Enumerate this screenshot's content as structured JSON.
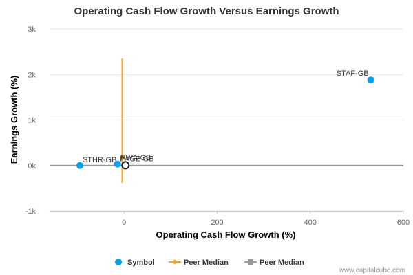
{
  "chart_data": {
    "type": "scatter",
    "title": "Operating Cash Flow Growth Versus Earnings Growth",
    "xlabel": "Operating Cash Flow Growth (%)",
    "ylabel": "Earnings Growth (%)",
    "xlim": [
      -160,
      600
    ],
    "ylim": [
      -1000,
      3000
    ],
    "x_ticks": [
      {
        "value": 0,
        "label": "0"
      },
      {
        "value": 200,
        "label": "200"
      },
      {
        "value": 400,
        "label": "400"
      },
      {
        "value": 600,
        "label": "600"
      }
    ],
    "y_ticks": [
      {
        "value": -1000,
        "label": "-1k"
      },
      {
        "value": 0,
        "label": "0k"
      },
      {
        "value": 1000,
        "label": "1k"
      },
      {
        "value": 2000,
        "label": "2k"
      },
      {
        "value": 3000,
        "label": "3k"
      }
    ],
    "grid": true,
    "legend_position": "bottom",
    "points": [
      {
        "label": "STAF-GB",
        "x": 530,
        "y": 1880,
        "color": "#0aa0e8"
      },
      {
        "label": "STHR-GB",
        "x": -95,
        "y": 0,
        "color": "#0aa0e8"
      },
      {
        "label": "RWA-GB",
        "x": -14,
        "y": 30,
        "color": "#0aa0e8"
      },
      {
        "label": "PAGE-GB",
        "x": 3,
        "y": 5,
        "color": "#0aa0e8",
        "highlight": true
      }
    ],
    "peer_median_x": {
      "value": -4,
      "y_range": [
        -380,
        2350
      ],
      "color": "#f5a623"
    },
    "peer_median_y": {
      "value": 0,
      "color": "#999999"
    },
    "legend": [
      {
        "label": "Symbol",
        "color": "#0aa0e8",
        "marker": "circle"
      },
      {
        "label": "Peer Median",
        "color": "#f5a623",
        "marker": "diamond-line"
      },
      {
        "label": "Peer Median",
        "color": "#999999",
        "marker": "square-line"
      }
    ]
  },
  "credit": "www.capitalcube.com"
}
